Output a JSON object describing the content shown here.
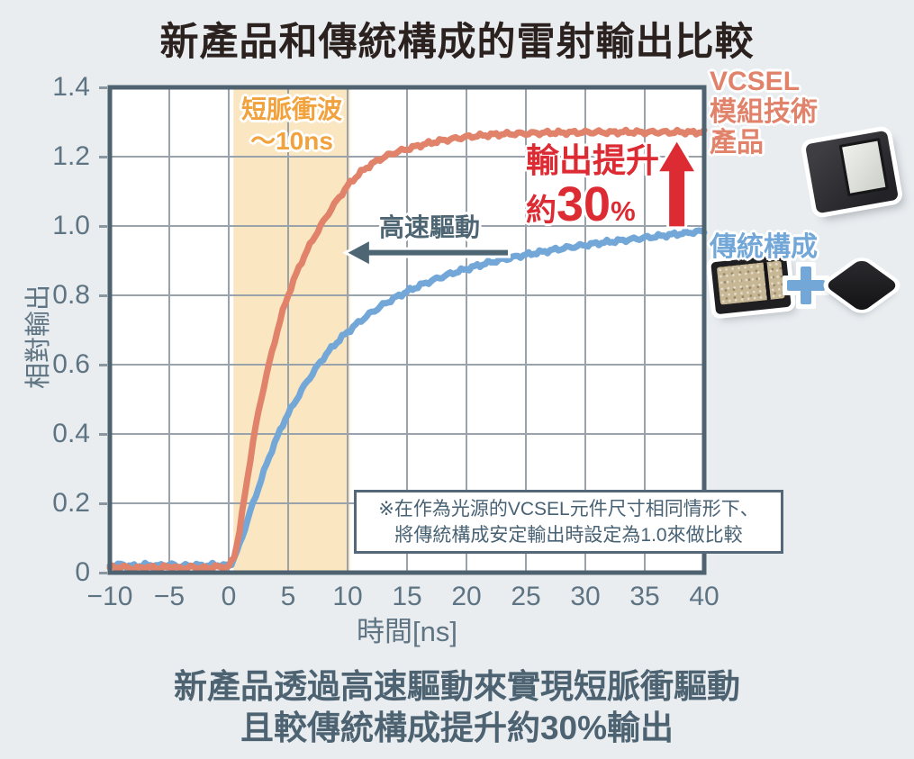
{
  "title": "新產品和傳統構成的雷射輸出比較",
  "colors": {
    "background": "#E9EDF0",
    "plot_bg": "#FFFFFF",
    "plot_border": "#4E6270",
    "grid": "#9AA3AB",
    "axis_text": "#5E7483",
    "title_text": "#2B2220",
    "caption_text": "#4D6372",
    "new_product": "#E0836A",
    "traditional": "#72A7D7",
    "accent_red": "#DC2B33",
    "band_fill": "#FAE6C1",
    "band_label": "#F2A23C",
    "speed_label": "#4E6673",
    "footnote_text": "#486274"
  },
  "chart_data": {
    "type": "line",
    "title": "新產品和傳統構成的雷射輸出比較",
    "xlabel": "時間[ns]",
    "ylabel": "相對輸出",
    "xlim": [
      -10,
      40
    ],
    "ylim": [
      0,
      1.4
    ],
    "x_ticks": [
      -10,
      -5,
      0,
      5,
      10,
      15,
      20,
      25,
      30,
      35,
      40
    ],
    "y_ticks": [
      0,
      0.2,
      0.4,
      0.6,
      0.8,
      1.0,
      1.2,
      1.4
    ],
    "grid": true,
    "legend_position": "right",
    "band": {
      "x_from": 0.4,
      "x_to": 10.2
    },
    "series": [
      {
        "name": "傳統構成",
        "color": "#72A7D7",
        "points": [
          [
            -10,
            0.02
          ],
          [
            -9,
            0.023
          ],
          [
            -8,
            0.018
          ],
          [
            -7,
            0.022
          ],
          [
            -6,
            0.019
          ],
          [
            -5,
            0.023
          ],
          [
            -4,
            0.018
          ],
          [
            -3,
            0.022
          ],
          [
            -2,
            0.019
          ],
          [
            -1,
            0.023
          ],
          [
            -0.4,
            0.019
          ],
          [
            0.2,
            0.025
          ],
          [
            0.7,
            0.06
          ],
          [
            1.2,
            0.11
          ],
          [
            1.7,
            0.165
          ],
          [
            2.2,
            0.215
          ],
          [
            2.7,
            0.265
          ],
          [
            3.2,
            0.315
          ],
          [
            3.7,
            0.36
          ],
          [
            4.2,
            0.4
          ],
          [
            4.7,
            0.44
          ],
          [
            5.2,
            0.47
          ],
          [
            5.7,
            0.5
          ],
          [
            6.2,
            0.53
          ],
          [
            6.7,
            0.557
          ],
          [
            7.2,
            0.582
          ],
          [
            7.7,
            0.607
          ],
          [
            8.2,
            0.63
          ],
          [
            8.7,
            0.65
          ],
          [
            9.2,
            0.668
          ],
          [
            9.7,
            0.685
          ],
          [
            10.2,
            0.7
          ],
          [
            11,
            0.724
          ],
          [
            12,
            0.75
          ],
          [
            13,
            0.773
          ],
          [
            14,
            0.793
          ],
          [
            15,
            0.811
          ],
          [
            16,
            0.827
          ],
          [
            17,
            0.841
          ],
          [
            18,
            0.854
          ],
          [
            19,
            0.866
          ],
          [
            20,
            0.876
          ],
          [
            21,
            0.886
          ],
          [
            22,
            0.895
          ],
          [
            23,
            0.903
          ],
          [
            24,
            0.91
          ],
          [
            25,
            0.917
          ],
          [
            26,
            0.923
          ],
          [
            27,
            0.929
          ],
          [
            28,
            0.935
          ],
          [
            29,
            0.94
          ],
          [
            30,
            0.945
          ],
          [
            31,
            0.95
          ],
          [
            32,
            0.954
          ],
          [
            33,
            0.958
          ],
          [
            34,
            0.962
          ],
          [
            35,
            0.966
          ],
          [
            36,
            0.97
          ],
          [
            37,
            0.974
          ],
          [
            38,
            0.978
          ],
          [
            39,
            0.982
          ],
          [
            40,
            0.985
          ]
        ]
      },
      {
        "name": "VCSEL模組技術產品",
        "color": "#E0836A",
        "points": [
          [
            -10,
            0.014
          ],
          [
            -9,
            0.017
          ],
          [
            -8,
            0.012
          ],
          [
            -7,
            0.016
          ],
          [
            -6,
            0.013
          ],
          [
            -5,
            0.017
          ],
          [
            -4,
            0.012
          ],
          [
            -3,
            0.016
          ],
          [
            -2,
            0.013
          ],
          [
            -1,
            0.017
          ],
          [
            -0.4,
            0.013
          ],
          [
            0.1,
            0.02
          ],
          [
            0.5,
            0.05
          ],
          [
            0.9,
            0.12
          ],
          [
            1.3,
            0.21
          ],
          [
            1.7,
            0.3
          ],
          [
            2.1,
            0.39
          ],
          [
            2.6,
            0.48
          ],
          [
            3.1,
            0.56
          ],
          [
            3.6,
            0.63
          ],
          [
            4.1,
            0.7
          ],
          [
            4.6,
            0.76
          ],
          [
            5.1,
            0.81
          ],
          [
            5.6,
            0.855
          ],
          [
            6.1,
            0.895
          ],
          [
            6.6,
            0.93
          ],
          [
            7.1,
            0.962
          ],
          [
            7.6,
            0.992
          ],
          [
            8.1,
            1.02
          ],
          [
            8.6,
            1.048
          ],
          [
            9.1,
            1.073
          ],
          [
            9.6,
            1.097
          ],
          [
            10.1,
            1.12
          ],
          [
            11,
            1.152
          ],
          [
            12,
            1.178
          ],
          [
            13,
            1.198
          ],
          [
            14,
            1.212
          ],
          [
            15,
            1.222
          ],
          [
            16,
            1.232
          ],
          [
            17,
            1.24
          ],
          [
            18,
            1.247
          ],
          [
            19,
            1.252
          ],
          [
            20,
            1.257
          ],
          [
            21,
            1.26
          ],
          [
            22,
            1.263
          ],
          [
            23,
            1.265
          ],
          [
            24,
            1.266
          ],
          [
            25,
            1.267
          ],
          [
            26,
            1.268
          ],
          [
            27,
            1.269
          ],
          [
            28,
            1.269
          ],
          [
            29,
            1.27
          ],
          [
            30,
            1.27
          ],
          [
            31,
            1.271
          ],
          [
            32,
            1.27
          ],
          [
            33,
            1.271
          ],
          [
            34,
            1.271
          ],
          [
            35,
            1.27
          ],
          [
            36,
            1.271
          ],
          [
            37,
            1.27
          ],
          [
            38,
            1.271
          ],
          [
            39,
            1.27
          ],
          [
            40,
            1.27
          ]
        ]
      }
    ],
    "annotations": {
      "band_label_line1": "短脈衝波",
      "band_label_line2": "～10ns",
      "speed_label": "高速驅動",
      "gain_line1": "輸出提升",
      "gain_prefix": "約",
      "gain_value": "30",
      "gain_unit": "%",
      "footnote_line1": "※在作為光源的VCSEL元件尺寸相同情形下、",
      "footnote_line2": "將傳統構成安定輸出時設定為1.0來做比較"
    }
  },
  "axis": {
    "xlabel": "時間[ns]",
    "ylabel": "相對輸出"
  },
  "legend": {
    "new_product": {
      "line1": "VCSEL",
      "line2": "模組技術",
      "line3": "產品"
    },
    "traditional": {
      "label": "傳統構成"
    }
  },
  "caption": {
    "line1": "新產品透過高速驅動來實現短脈衝驅動",
    "line2": "且較傳統構成提升約30%輸出"
  }
}
